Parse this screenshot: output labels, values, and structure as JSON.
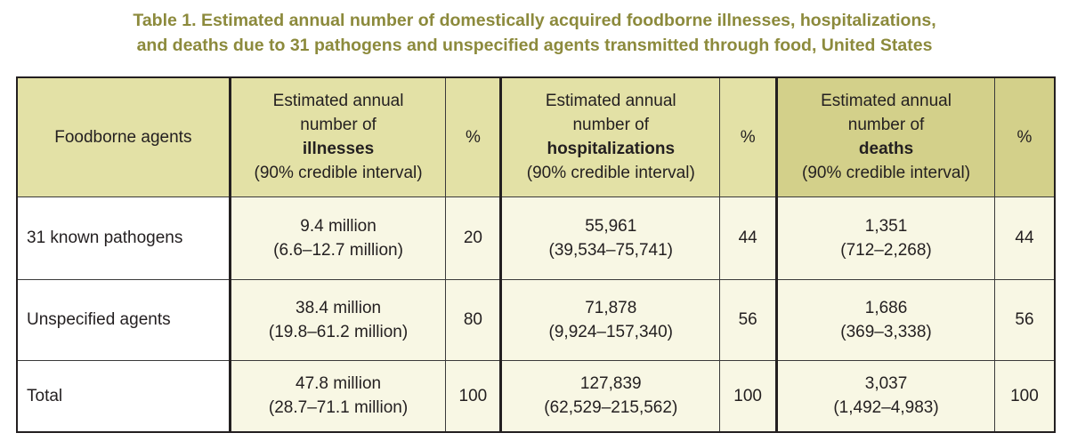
{
  "title": {
    "line1": "Table 1. Estimated annual number of domestically acquired foodborne illnesses, hospitalizations,",
    "line2": "and deaths due to 31 pathogens and unspecified agents transmitted through food, United States"
  },
  "table": {
    "headers": {
      "agents": "Foodborne agents",
      "illnesses": {
        "line1": "Estimated annual",
        "line2": "number of",
        "measure": "illnesses",
        "interval": "(90% credible interval)"
      },
      "illnesses_pct": "%",
      "hospitalizations": {
        "line1": "Estimated annual",
        "line2": "number of",
        "measure": "hospitalizations",
        "interval": "(90% credible interval)"
      },
      "hospitalizations_pct": "%",
      "deaths": {
        "line1": "Estimated annual",
        "line2": "number of",
        "measure": "deaths",
        "interval": "(90% credible interval)"
      },
      "deaths_pct": "%"
    },
    "rows": [
      {
        "agent": "31 known pathogens",
        "illnesses": "9.4 million",
        "illnesses_ci": "(6.6–12.7 million)",
        "illnesses_pct": "20",
        "hospitalizations": "55,961",
        "hospitalizations_ci": "(39,534–75,741)",
        "hospitalizations_pct": "44",
        "deaths": "1,351",
        "deaths_ci": "(712–2,268)",
        "deaths_pct": "44"
      },
      {
        "agent": "Unspecified agents",
        "illnesses": "38.4 million",
        "illnesses_ci": "(19.8–61.2 million)",
        "illnesses_pct": "80",
        "hospitalizations": "71,878",
        "hospitalizations_ci": "(9,924–157,340)",
        "hospitalizations_pct": "56",
        "deaths": "1,686",
        "deaths_ci": "(369–3,338)",
        "deaths_pct": "56"
      },
      {
        "agent": "Total",
        "illnesses": "47.8 million",
        "illnesses_ci": "(28.7–71.1 million)",
        "illnesses_pct": "100",
        "hospitalizations": "127,839",
        "hospitalizations_ci": "(62,529–215,562)",
        "hospitalizations_pct": "100",
        "deaths": "3,037",
        "deaths_ci": "(1,492–4,983)",
        "deaths_pct": "100"
      }
    ]
  },
  "colors": {
    "title": "#8c8a3c",
    "header_fill": "#e3e1a6",
    "header_fill_dark": "#d3d08a",
    "shaded_cell": "#f8f7e4"
  }
}
